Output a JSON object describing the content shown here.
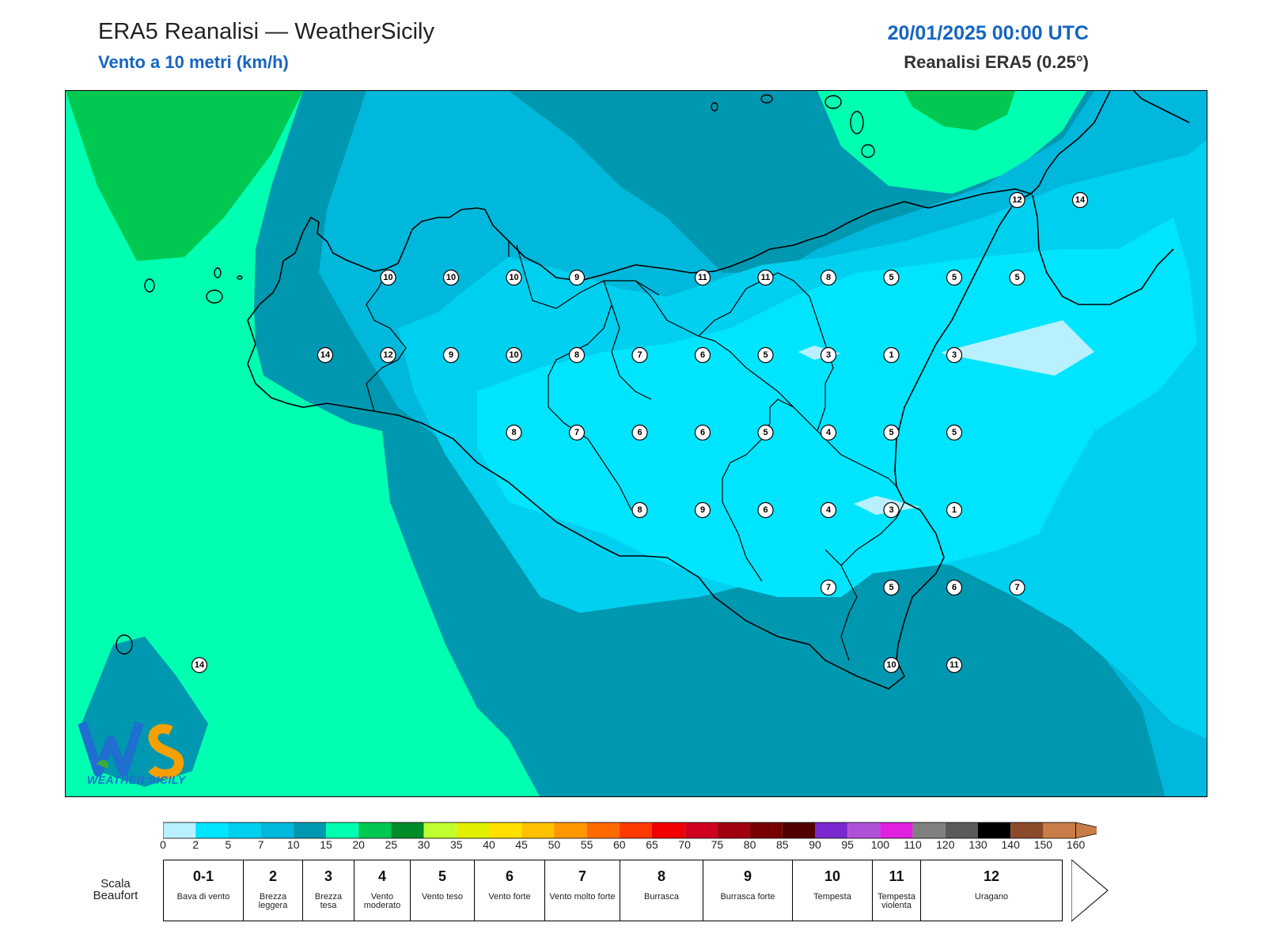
{
  "header": {
    "title": "ERA5 Reanalisi — WeatherSicily",
    "subtitle": "Vento a 10 metri (km/h)",
    "datetime": "20/01/2025 00:00 UTC",
    "source": "Reanalisi ERA5 (0.25°)"
  },
  "logo": {
    "text": "WEATHER SICILY",
    "initials": "WS",
    "icon": "ws-logo"
  },
  "map": {
    "stations": [
      {
        "lon": 12.5,
        "lat": 38.0,
        "v": "14"
      },
      {
        "lon": 12.75,
        "lat": 38.25,
        "v": "10"
      },
      {
        "lon": 13.0,
        "lat": 38.25,
        "v": "10"
      },
      {
        "lon": 13.25,
        "lat": 38.25,
        "v": "10"
      },
      {
        "lon": 13.5,
        "lat": 38.25,
        "v": "9"
      },
      {
        "lon": 14.0,
        "lat": 38.25,
        "v": "11"
      },
      {
        "lon": 14.25,
        "lat": 38.25,
        "v": "11"
      },
      {
        "lon": 14.5,
        "lat": 38.25,
        "v": "8"
      },
      {
        "lon": 14.75,
        "lat": 38.25,
        "v": "5"
      },
      {
        "lon": 15.0,
        "lat": 38.25,
        "v": "5"
      },
      {
        "lon": 15.25,
        "lat": 38.25,
        "v": "5"
      },
      {
        "lon": 15.25,
        "lat": 38.5,
        "v": "12"
      },
      {
        "lon": 15.5,
        "lat": 38.5,
        "v": "14"
      },
      {
        "lon": 12.75,
        "lat": 38.0,
        "v": "12"
      },
      {
        "lon": 13.0,
        "lat": 38.0,
        "v": "9"
      },
      {
        "lon": 13.25,
        "lat": 38.0,
        "v": "10"
      },
      {
        "lon": 13.5,
        "lat": 38.0,
        "v": "8"
      },
      {
        "lon": 13.75,
        "lat": 38.0,
        "v": "7"
      },
      {
        "lon": 14.0,
        "lat": 38.0,
        "v": "6"
      },
      {
        "lon": 14.25,
        "lat": 38.0,
        "v": "5"
      },
      {
        "lon": 14.5,
        "lat": 38.0,
        "v": "3"
      },
      {
        "lon": 14.75,
        "lat": 38.0,
        "v": "1"
      },
      {
        "lon": 15.0,
        "lat": 38.0,
        "v": "3"
      },
      {
        "lon": 13.25,
        "lat": 37.75,
        "v": "8"
      },
      {
        "lon": 13.5,
        "lat": 37.75,
        "v": "7"
      },
      {
        "lon": 13.75,
        "lat": 37.75,
        "v": "6"
      },
      {
        "lon": 14.0,
        "lat": 37.75,
        "v": "6"
      },
      {
        "lon": 14.25,
        "lat": 37.75,
        "v": "5"
      },
      {
        "lon": 14.5,
        "lat": 37.75,
        "v": "4"
      },
      {
        "lon": 14.75,
        "lat": 37.75,
        "v": "5"
      },
      {
        "lon": 15.0,
        "lat": 37.75,
        "v": "5"
      },
      {
        "lon": 13.75,
        "lat": 37.5,
        "v": "8"
      },
      {
        "lon": 14.0,
        "lat": 37.5,
        "v": "9"
      },
      {
        "lon": 14.25,
        "lat": 37.5,
        "v": "6"
      },
      {
        "lon": 14.5,
        "lat": 37.5,
        "v": "4"
      },
      {
        "lon": 14.75,
        "lat": 37.5,
        "v": "3"
      },
      {
        "lon": 15.0,
        "lat": 37.5,
        "v": "1"
      },
      {
        "lon": 14.5,
        "lat": 37.25,
        "v": "7"
      },
      {
        "lon": 14.75,
        "lat": 37.25,
        "v": "5"
      },
      {
        "lon": 15.0,
        "lat": 37.25,
        "v": "6"
      },
      {
        "lon": 15.25,
        "lat": 37.25,
        "v": "7"
      },
      {
        "lon": 14.75,
        "lat": 37.0,
        "v": "10"
      },
      {
        "lon": 15.0,
        "lat": 37.0,
        "v": "11"
      },
      {
        "lon": 12.0,
        "lat": 37.0,
        "v": "14"
      }
    ]
  },
  "colorbar": {
    "colors": [
      "#b8f0ff",
      "#00e5ff",
      "#00d0f0",
      "#00b8dc",
      "#0098b0",
      "#00ffb0",
      "#00c850",
      "#008c28",
      "#c0ff30",
      "#e0f000",
      "#ffe000",
      "#ffc000",
      "#ff9800",
      "#ff6a00",
      "#ff3a00",
      "#f00000",
      "#d00020",
      "#a00010",
      "#780000",
      "#500000",
      "#7a2ad0",
      "#b050d8",
      "#e020e0",
      "#808080",
      "#5a5a5a",
      "#000000",
      "#8b4a2a",
      "#c87d48"
    ],
    "ticks": [
      "0",
      "2",
      "5",
      "7",
      "10",
      "15",
      "20",
      "25",
      "30",
      "35",
      "40",
      "45",
      "50",
      "55",
      "60",
      "65",
      "70",
      "75",
      "80",
      "85",
      "90",
      "95",
      "100",
      "110",
      "120",
      "130",
      "140",
      "150",
      "160"
    ]
  },
  "beaufort": {
    "label": "Scala Beaufort",
    "classes": [
      {
        "num": "0-1",
        "desc": "Bava di vento"
      },
      {
        "num": "2",
        "desc": "Brezza leggera"
      },
      {
        "num": "3",
        "desc": "Brezza tesa"
      },
      {
        "num": "4",
        "desc": "Vento moderato"
      },
      {
        "num": "5",
        "desc": "Vento teso"
      },
      {
        "num": "6",
        "desc": "Vento forte"
      },
      {
        "num": "7",
        "desc": "Vento molto forte"
      },
      {
        "num": "8",
        "desc": "Burrasca"
      },
      {
        "num": "9",
        "desc": "Burrasca forte"
      },
      {
        "num": "10",
        "desc": "Tempesta"
      },
      {
        "num": "11",
        "desc": "Tempesta violenta"
      },
      {
        "num": "12",
        "desc": "Uragano"
      }
    ]
  }
}
